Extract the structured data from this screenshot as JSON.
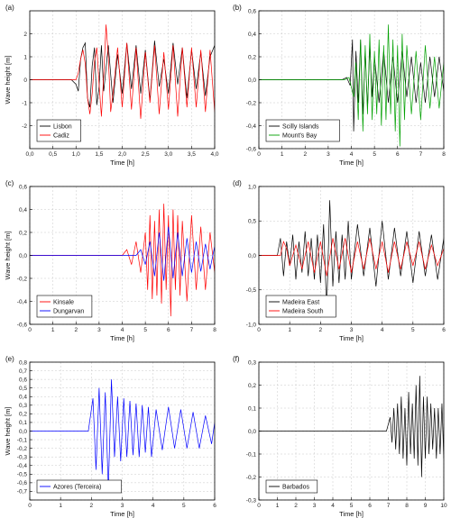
{
  "chart_data": [
    {
      "type": "line",
      "panel_label": "(a)",
      "xlabel": "Time [h]",
      "ylabel": "Wave height [m]",
      "xlim": [
        0,
        4
      ],
      "ylim": [
        -3,
        3
      ],
      "xticks": [
        0,
        0.5,
        1,
        1.5,
        2,
        2.5,
        3,
        3.5,
        4
      ],
      "xtick_labels": [
        "0,0",
        "0,5",
        "1,0",
        "1,5",
        "2,0",
        "2,5",
        "3,0",
        "3,5",
        "4,0"
      ],
      "yticks": [
        -2,
        -1,
        0,
        1,
        2
      ],
      "ytick_labels": [
        "-2",
        "-1",
        "0",
        "1",
        "2"
      ],
      "grid": true,
      "legend_position": "bottom-left",
      "series": [
        {
          "name": "Lisbon",
          "color": "#000000",
          "x": [
            0,
            0.9,
            1.0,
            1.05,
            1.1,
            1.15,
            1.2,
            1.25,
            1.3,
            1.35,
            1.4,
            1.45,
            1.5,
            1.55,
            1.6,
            1.7,
            1.8,
            1.9,
            2.0,
            2.1,
            2.2,
            2.3,
            2.4,
            2.5,
            2.6,
            2.7,
            2.8,
            2.9,
            3.0,
            3.1,
            3.2,
            3.3,
            3.4,
            3.5,
            3.6,
            3.7,
            3.8,
            3.9,
            4.0
          ],
          "y": [
            0,
            0,
            -0.2,
            -0.5,
            0.9,
            1.4,
            1.6,
            -0.8,
            -1.2,
            0.6,
            1.4,
            -1.1,
            -0.3,
            1.5,
            -0.5,
            1.5,
            -1.0,
            1.1,
            -0.6,
            1.6,
            -0.4,
            1.5,
            -0.6,
            1.3,
            -0.9,
            1.7,
            -0.3,
            0.9,
            -0.6,
            1.6,
            -0.2,
            1.4,
            -0.8,
            1.3,
            -0.4,
            1.2,
            -0.7,
            1.0,
            1.5
          ]
        },
        {
          "name": "Cadiz",
          "color": "#ff0000",
          "x": [
            0,
            1.0,
            1.05,
            1.1,
            1.15,
            1.2,
            1.25,
            1.3,
            1.35,
            1.4,
            1.45,
            1.5,
            1.55,
            1.6,
            1.65,
            1.7,
            1.75,
            1.8,
            1.9,
            2.0,
            2.1,
            2.2,
            2.3,
            2.4,
            2.5,
            2.6,
            2.7,
            2.8,
            2.9,
            3.0,
            3.1,
            3.2,
            3.3,
            3.4,
            3.5,
            3.6,
            3.7,
            3.8,
            3.9,
            4.0
          ],
          "y": [
            0,
            0,
            0.3,
            0.9,
            1.3,
            0.7,
            -0.8,
            -1.5,
            -0.6,
            0.8,
            1.4,
            -0.2,
            -1.6,
            0.2,
            2.4,
            1.0,
            -1.4,
            -0.6,
            1.4,
            -1.2,
            1.6,
            -1.3,
            1.4,
            -1.7,
            1.2,
            -1.0,
            1.5,
            -1.5,
            1.2,
            -1.3,
            1.5,
            -1.6,
            1.4,
            -1.2,
            1.4,
            -1.2,
            1.3,
            -1.4,
            1.3,
            -1.4
          ]
        }
      ]
    },
    {
      "type": "line",
      "panel_label": "(b)",
      "xlabel": "Time [h]",
      "ylabel": "",
      "xlim": [
        0,
        8
      ],
      "ylim": [
        -0.6,
        0.6
      ],
      "xticks": [
        0,
        1,
        2,
        3,
        4,
        5,
        6,
        7,
        8
      ],
      "xtick_labels": [
        "0",
        "1",
        "2",
        "3",
        "4",
        "5",
        "6",
        "7",
        "8"
      ],
      "yticks": [
        -0.6,
        -0.4,
        -0.2,
        0.0,
        0.2,
        0.4,
        0.6
      ],
      "ytick_labels": [
        "-0,6",
        "-0,4",
        "-0,2",
        "0,0",
        "0,2",
        "0,4",
        "0,6"
      ],
      "grid": true,
      "legend_position": "bottom-left",
      "series": [
        {
          "name": "Scilly Islands",
          "color": "#000000",
          "x": [
            0,
            3.6,
            3.8,
            3.95,
            4.05,
            4.1,
            4.2,
            4.3,
            4.4,
            4.5,
            4.6,
            4.7,
            4.8,
            4.9,
            5.0,
            5.2,
            5.4,
            5.6,
            5.8,
            6.0,
            6.2,
            6.4,
            6.6,
            6.8,
            7.0,
            7.2,
            7.4,
            7.6,
            7.8,
            8.0
          ],
          "y": [
            0,
            0,
            0.02,
            -0.05,
            0.35,
            -0.45,
            0.25,
            -0.2,
            0.35,
            -0.3,
            0.25,
            -0.25,
            0.3,
            -0.15,
            0.2,
            -0.2,
            0.25,
            -0.2,
            0.2,
            -0.2,
            0.25,
            -0.15,
            0.2,
            -0.2,
            0.15,
            -0.2,
            0.2,
            -0.15,
            0.2,
            -0.1
          ]
        },
        {
          "name": "Mount's Bay",
          "color": "#00a000",
          "x": [
            0,
            3.7,
            3.9,
            4.1,
            4.2,
            4.3,
            4.4,
            4.5,
            4.6,
            4.7,
            4.8,
            4.9,
            5.0,
            5.1,
            5.2,
            5.3,
            5.4,
            5.5,
            5.6,
            5.7,
            5.8,
            5.9,
            6.0,
            6.1,
            6.2,
            6.3,
            6.4,
            6.6,
            6.8,
            7.0,
            7.2,
            7.4,
            7.6,
            7.8,
            8.0
          ],
          "y": [
            0,
            0,
            0.02,
            -0.15,
            0.15,
            -0.35,
            0.35,
            -0.45,
            0.3,
            -0.3,
            0.4,
            -0.35,
            0.25,
            -0.3,
            0.35,
            -0.4,
            0.3,
            -0.35,
            0.48,
            -0.3,
            0.35,
            -0.45,
            0.3,
            -0.58,
            0.4,
            -0.35,
            0.3,
            -0.3,
            0.25,
            -0.35,
            0.3,
            -0.25,
            0.2,
            -0.25,
            0.15
          ]
        }
      ]
    },
    {
      "type": "line",
      "panel_label": "(c)",
      "xlabel": "Time [h]",
      "ylabel": "Wave height [m]",
      "xlim": [
        0,
        8
      ],
      "ylim": [
        -0.6,
        0.6
      ],
      "xticks": [
        0,
        1,
        2,
        3,
        4,
        5,
        6,
        7,
        8
      ],
      "xtick_labels": [
        "0",
        "1",
        "2",
        "3",
        "4",
        "5",
        "6",
        "7",
        "8"
      ],
      "yticks": [
        -0.6,
        -0.4,
        -0.2,
        0.0,
        0.2,
        0.4,
        0.6
      ],
      "ytick_labels": [
        "-0,6",
        "-0,4",
        "-0,2",
        "0,0",
        "0,2",
        "0,4",
        "0,6"
      ],
      "grid": true,
      "legend_position": "bottom-left",
      "series": [
        {
          "name": "Kinsale",
          "color": "#ff0000",
          "x": [
            0,
            4.0,
            4.2,
            4.4,
            4.6,
            4.8,
            5.0,
            5.1,
            5.2,
            5.3,
            5.4,
            5.5,
            5.6,
            5.7,
            5.8,
            5.9,
            6.0,
            6.1,
            6.2,
            6.3,
            6.4,
            6.5,
            6.6,
            6.8,
            7.0,
            7.2,
            7.4,
            7.6,
            7.8,
            8.0
          ],
          "y": [
            0,
            0,
            0.05,
            -0.08,
            0.12,
            -0.15,
            0.2,
            -0.3,
            0.35,
            -0.38,
            0.3,
            -0.35,
            0.4,
            -0.42,
            0.45,
            -0.3,
            0.35,
            -0.53,
            0.4,
            -0.3,
            0.35,
            -0.35,
            0.3,
            -0.4,
            0.35,
            -0.3,
            0.25,
            -0.3,
            0.2,
            -0.15
          ]
        },
        {
          "name": "Dungarvan",
          "color": "#0000ff",
          "x": [
            0,
            4.6,
            4.8,
            5.0,
            5.2,
            5.4,
            5.6,
            5.8,
            6.0,
            6.2,
            6.4,
            6.6,
            6.8,
            7.0,
            7.2,
            7.4,
            7.6,
            7.8,
            8.0
          ],
          "y": [
            0,
            0,
            0.05,
            -0.08,
            0.12,
            -0.18,
            0.2,
            -0.22,
            0.25,
            -0.2,
            0.2,
            -0.18,
            0.15,
            -0.15,
            0.12,
            -0.14,
            0.1,
            -0.12,
            0.08
          ]
        }
      ]
    },
    {
      "type": "line",
      "panel_label": "(d)",
      "xlabel": "Time [h]",
      "ylabel": "",
      "xlim": [
        0,
        6
      ],
      "ylim": [
        -1.0,
        1.0
      ],
      "xticks": [
        0,
        1,
        2,
        3,
        4,
        5,
        6
      ],
      "xtick_labels": [
        "0",
        "1",
        "2",
        "3",
        "4",
        "5",
        "6"
      ],
      "yticks": [
        -1.0,
        -0.5,
        0.0,
        0.5,
        1.0
      ],
      "ytick_labels": [
        "-1,0",
        "-0,5",
        "0,0",
        "0,5",
        "1,0"
      ],
      "grid": true,
      "legend_position": "bottom-left",
      "series": [
        {
          "name": "Madeira East",
          "color": "#000000",
          "x": [
            0,
            0.6,
            0.7,
            0.8,
            0.9,
            1.0,
            1.1,
            1.2,
            1.3,
            1.4,
            1.5,
            1.6,
            1.7,
            1.8,
            1.9,
            2.0,
            2.1,
            2.2,
            2.3,
            2.4,
            2.5,
            2.6,
            2.7,
            2.8,
            2.9,
            3.0,
            3.2,
            3.4,
            3.6,
            3.8,
            4.0,
            4.2,
            4.4,
            4.6,
            4.8,
            5.0,
            5.2,
            5.4,
            5.6,
            5.8,
            6.0
          ],
          "y": [
            0,
            0,
            0.25,
            -0.3,
            0.2,
            -0.15,
            0.3,
            -0.35,
            0.2,
            -0.25,
            0.35,
            -0.3,
            0.25,
            -0.35,
            0.3,
            -0.4,
            0.45,
            -0.8,
            0.8,
            -0.45,
            0.35,
            -0.4,
            0.3,
            -0.35,
            0.5,
            -0.35,
            0.45,
            -0.3,
            0.4,
            -0.45,
            0.5,
            -0.35,
            0.4,
            -0.3,
            0.35,
            -0.4,
            0.35,
            -0.3,
            0.3,
            -0.35,
            0.25
          ]
        },
        {
          "name": "Madeira South",
          "color": "#ff0000",
          "x": [
            0,
            0.7,
            0.8,
            0.9,
            1.0,
            1.2,
            1.4,
            1.6,
            1.8,
            2.0,
            2.2,
            2.4,
            2.6,
            2.8,
            3.0,
            3.2,
            3.4,
            3.6,
            3.8,
            4.0,
            4.2,
            4.4,
            4.6,
            4.8,
            5.0,
            5.2,
            5.4,
            5.6,
            5.8,
            6.0
          ],
          "y": [
            0,
            0,
            0.2,
            0.1,
            -0.15,
            0.15,
            -0.2,
            0.2,
            -0.25,
            0.2,
            -0.3,
            0.25,
            -0.2,
            0.25,
            -0.25,
            0.2,
            -0.2,
            0.25,
            -0.2,
            0.2,
            -0.25,
            0.2,
            -0.2,
            0.2,
            -0.15,
            0.2,
            -0.2,
            0.15,
            -0.15,
            0.1
          ]
        }
      ]
    },
    {
      "type": "line",
      "panel_label": "(e)",
      "xlabel": "Time [h]",
      "ylabel": "Wave height [m]",
      "xlim": [
        0,
        6
      ],
      "ylim": [
        -0.8,
        0.8
      ],
      "xticks": [
        0,
        1,
        2,
        3,
        4,
        5,
        6
      ],
      "xtick_labels": [
        "0",
        "1",
        "2",
        "3",
        "4",
        "5",
        "6"
      ],
      "yticks": [
        -0.8,
        -0.7,
        -0.6,
        -0.5,
        -0.4,
        -0.3,
        -0.2,
        -0.1,
        0.0,
        0.1,
        0.2,
        0.3,
        0.4,
        0.5,
        0.6,
        0.7,
        0.8
      ],
      "ytick_labels": [
        "",
        "-0,7",
        "-0,6",
        "-0,5",
        "-0,4",
        "-0,3",
        "-0,2",
        "-0,1",
        "0,0",
        "0,1",
        "0,2",
        "0,3",
        "0,4",
        "0,5",
        "0,6",
        "0,7",
        "0,8"
      ],
      "grid": true,
      "legend_position": "bottom-left",
      "series": [
        {
          "name": "Azores (Terceira)",
          "color": "#0000ff",
          "x": [
            0,
            1.9,
            2.05,
            2.15,
            2.25,
            2.35,
            2.45,
            2.55,
            2.65,
            2.75,
            2.85,
            2.95,
            3.05,
            3.15,
            3.25,
            3.35,
            3.45,
            3.55,
            3.65,
            3.75,
            3.85,
            3.95,
            4.1,
            4.3,
            4.5,
            4.7,
            4.9,
            5.1,
            5.3,
            5.5,
            5.7,
            5.9,
            6.0
          ],
          "y": [
            0,
            0,
            0.38,
            -0.45,
            0.5,
            -0.5,
            0.45,
            -0.68,
            0.6,
            -0.3,
            0.4,
            -0.35,
            0.38,
            -0.3,
            0.35,
            -0.28,
            0.32,
            -0.3,
            0.3,
            -0.25,
            0.28,
            -0.3,
            0.25,
            -0.22,
            0.28,
            -0.2,
            0.25,
            -0.2,
            0.22,
            -0.2,
            0.18,
            -0.15,
            0.1
          ]
        }
      ]
    },
    {
      "type": "line",
      "panel_label": "(f)",
      "xlabel": "Time [h]",
      "ylabel": "",
      "xlim": [
        0,
        10
      ],
      "ylim": [
        -0.3,
        0.3
      ],
      "xticks": [
        0,
        1,
        2,
        3,
        4,
        5,
        6,
        7,
        8,
        9,
        10
      ],
      "xtick_labels": [
        "0",
        "1",
        "2",
        "3",
        "4",
        "5",
        "6",
        "7",
        "8",
        "9",
        "10"
      ],
      "yticks": [
        -0.3,
        -0.2,
        -0.1,
        0.0,
        0.1,
        0.2,
        0.3
      ],
      "ytick_labels": [
        "-0,3",
        "-0,2",
        "-0,1",
        "0,0",
        "0,1",
        "0,2",
        "0,3"
      ],
      "grid": true,
      "legend_position": "bottom-left",
      "series": [
        {
          "name": "Barbados",
          "color": "#000000",
          "x": [
            0,
            6.9,
            7.1,
            7.2,
            7.3,
            7.4,
            7.5,
            7.6,
            7.7,
            7.8,
            7.9,
            8.0,
            8.1,
            8.2,
            8.3,
            8.4,
            8.5,
            8.6,
            8.7,
            8.8,
            8.9,
            9.0,
            9.1,
            9.2,
            9.3,
            9.4,
            9.5,
            9.6,
            9.7,
            9.8,
            9.9,
            10.0
          ],
          "y": [
            0,
            0,
            0.06,
            -0.05,
            0.1,
            -0.08,
            0.12,
            -0.1,
            0.15,
            -0.12,
            0.1,
            -0.15,
            0.17,
            -0.1,
            0.12,
            -0.12,
            0.2,
            -0.15,
            0.24,
            -0.2,
            0.15,
            -0.12,
            0.15,
            -0.1,
            0.12,
            -0.08,
            0.1,
            -0.12,
            0.1,
            -0.1,
            0.12,
            -0.12
          ]
        }
      ]
    }
  ]
}
